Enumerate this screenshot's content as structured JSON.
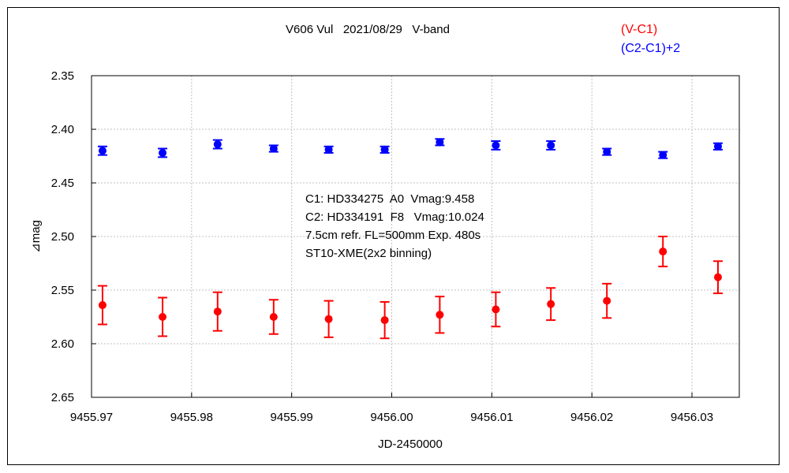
{
  "chart_data": {
    "type": "scatter",
    "title": "V606 Vul   2021/08/29   V-band",
    "xlabel": "JD-2450000",
    "ylabel": "⊿mag",
    "xlim": [
      9455.97,
      9456.035
    ],
    "ylim": [
      2.65,
      2.35
    ],
    "y_inverted": true,
    "grid": true,
    "x_ticks": [
      9455.97,
      9455.98,
      9455.99,
      9456.0,
      9456.01,
      9456.02,
      9456.03
    ],
    "x_tick_labels": [
      "9455.97",
      "9455.98",
      "9455.99",
      "9456.00",
      "9456.01",
      "9456.02",
      "9456.03"
    ],
    "y_ticks": [
      2.35,
      2.4,
      2.45,
      2.5,
      2.55,
      2.6,
      2.65
    ],
    "y_tick_labels": [
      "2.35",
      "2.40",
      "2.45",
      "2.50",
      "2.55",
      "2.60",
      "2.65"
    ],
    "legend_position": "top-right",
    "annotations": [
      "C1: HD334275  A0  Vmag:9.458",
      "C2: HD334191  F8   Vmag:10.024",
      "7.5cm refr. FL=500mm Exp. 480s",
      "ST10-XME(2x2 binning)"
    ],
    "series": [
      {
        "name": "(V-C1)",
        "color": "#ff0000",
        "x": [
          9455.9711,
          9455.9771,
          9455.9826,
          9455.9882,
          9455.9937,
          9455.9993,
          9456.0048,
          9456.0104,
          9456.0159,
          9456.0215,
          9456.0271,
          9456.0326
        ],
        "y": [
          2.564,
          2.575,
          2.57,
          2.575,
          2.577,
          2.578,
          2.573,
          2.568,
          2.563,
          2.56,
          2.514,
          2.538
        ],
        "err": [
          0.018,
          0.018,
          0.018,
          0.016,
          0.017,
          0.017,
          0.017,
          0.016,
          0.015,
          0.016,
          0.014,
          0.015
        ]
      },
      {
        "name": "(C2-C1)+2",
        "color": "#0000ff",
        "x": [
          9455.9711,
          9455.9771,
          9455.9826,
          9455.9882,
          9455.9937,
          9455.9993,
          9456.0048,
          9456.0104,
          9456.0159,
          9456.0215,
          9456.0271,
          9456.0326
        ],
        "y": [
          2.42,
          2.422,
          2.414,
          2.418,
          2.419,
          2.419,
          2.412,
          2.415,
          2.415,
          2.421,
          2.424,
          2.416
        ],
        "err": [
          0.004,
          0.004,
          0.004,
          0.003,
          0.003,
          0.003,
          0.003,
          0.004,
          0.004,
          0.003,
          0.003,
          0.003
        ]
      }
    ]
  }
}
